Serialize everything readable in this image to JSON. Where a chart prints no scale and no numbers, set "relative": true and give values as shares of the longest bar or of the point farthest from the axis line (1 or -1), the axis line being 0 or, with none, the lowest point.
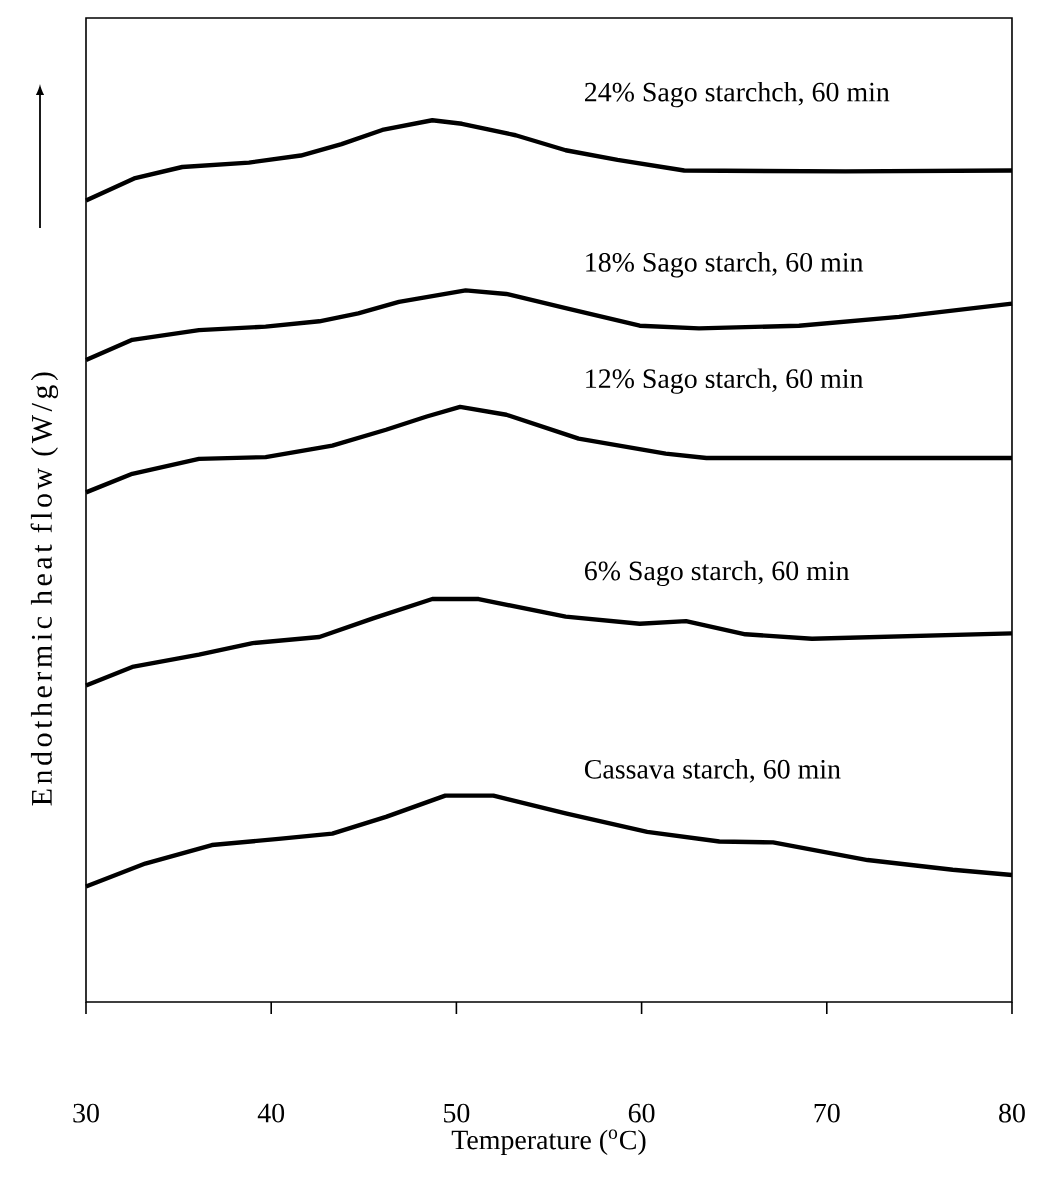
{
  "chart_data": {
    "type": "line",
    "relative": true,
    "xlabel": "Temperature ($^{o}$C)",
    "ylabel": "Endothermic heat flow (W/g)",
    "xlim": [
      30,
      80
    ],
    "xticks": [
      30,
      40,
      50,
      60,
      70,
      80
    ],
    "series": [
      {
        "name": "24% Sago starchch, 60 min",
        "color": "#000000",
        "x": [
          30,
          32.6,
          35.2,
          38.8,
          41.6,
          43.8,
          46,
          48.7,
          50.3,
          53.2,
          55.9,
          58.7,
          62.3,
          71,
          80
        ],
        "values": [
          0.909,
          0.934,
          0.947,
          0.952,
          0.96,
          0.973,
          0.989,
          1.0,
          0.996,
          0.983,
          0.966,
          0.955,
          0.943,
          0.942,
          0.943
        ]
      },
      {
        "name": "18% Sago starch, 60 min",
        "color": "#000000",
        "x": [
          30,
          32.5,
          36.1,
          39.7,
          42.6,
          44.7,
          46.9,
          50.5,
          52.7,
          55.9,
          59.9,
          63.1,
          68.5,
          73.9,
          80
        ],
        "values": [
          0.728,
          0.751,
          0.762,
          0.766,
          0.772,
          0.781,
          0.794,
          0.807,
          0.803,
          0.787,
          0.767,
          0.764,
          0.767,
          0.777,
          0.792
        ]
      },
      {
        "name": "12% Sago starch, 60 min",
        "color": "#000000",
        "x": [
          30,
          32.5,
          36.1,
          39.7,
          43.3,
          46.2,
          48.4,
          50.2,
          52.7,
          56.6,
          61.3,
          63.5,
          80
        ],
        "values": [
          0.578,
          0.599,
          0.616,
          0.618,
          0.631,
          0.649,
          0.664,
          0.675,
          0.666,
          0.639,
          0.622,
          0.617,
          0.617
        ]
      },
      {
        "name": "6% Sago starch, 60 min",
        "color": "#000000",
        "x": [
          30,
          32.5,
          36.1,
          39,
          42.6,
          45.5,
          48.7,
          51.2,
          55.9,
          59.9,
          62.4,
          65.6,
          69.2,
          80
        ],
        "values": [
          0.359,
          0.38,
          0.394,
          0.407,
          0.414,
          0.435,
          0.457,
          0.457,
          0.437,
          0.429,
          0.432,
          0.417,
          0.412,
          0.418
        ]
      },
      {
        "name": "Cassava starch, 60 min",
        "color": "#000000",
        "x": [
          30,
          33.2,
          36.8,
          40.4,
          43.3,
          46.2,
          49.4,
          52,
          55.9,
          60.3,
          64.2,
          67.1,
          72.2,
          76.8,
          80
        ],
        "values": [
          0.131,
          0.157,
          0.178,
          0.185,
          0.191,
          0.21,
          0.234,
          0.234,
          0.214,
          0.193,
          0.182,
          0.181,
          0.161,
          0.15,
          0.144
        ]
      }
    ]
  }
}
